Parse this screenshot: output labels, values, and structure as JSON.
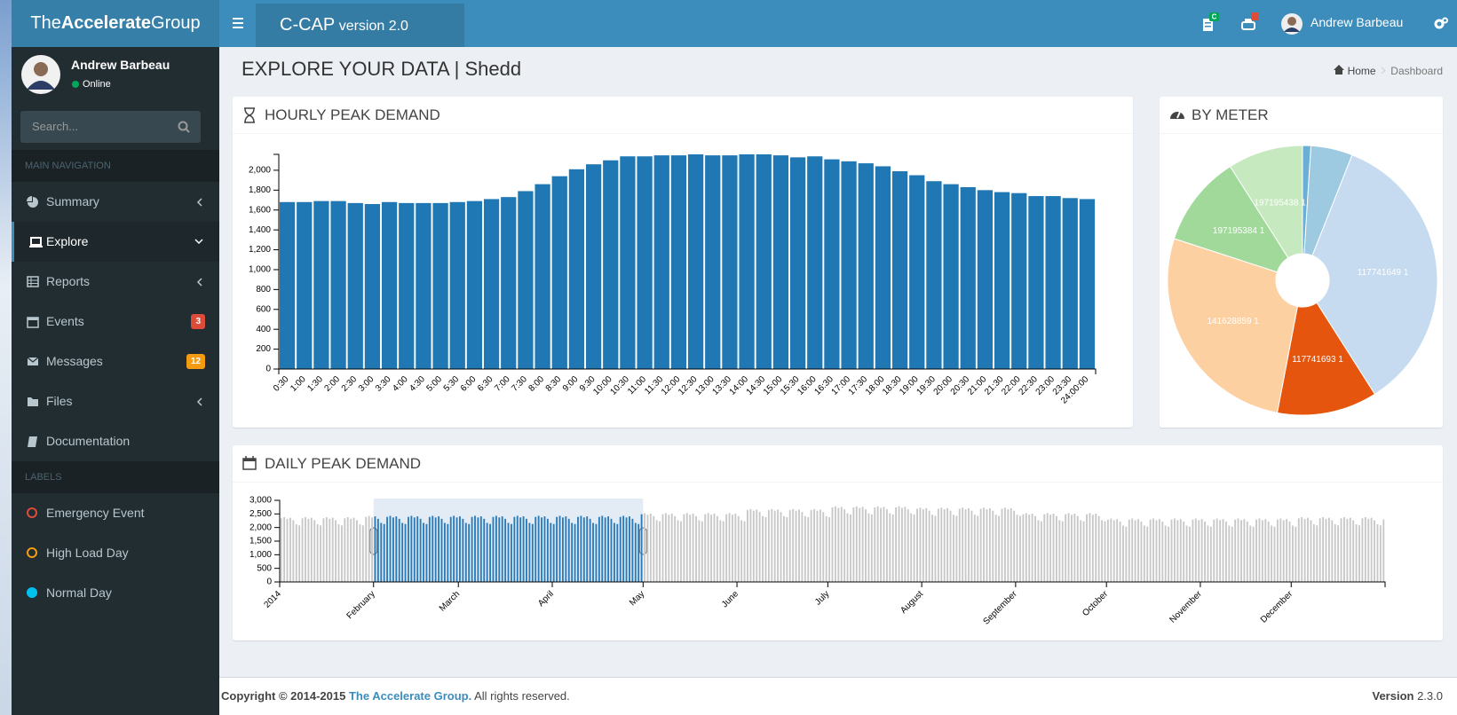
{
  "header": {
    "logo": [
      "The",
      "Accelerate",
      "Group"
    ],
    "app_name": "C-CAP",
    "app_version": "version 2.0",
    "notification_badge": "C",
    "user_name": "Andrew Barbeau"
  },
  "sidebar": {
    "user_name": "Andrew Barbeau",
    "status": "Online",
    "search_placeholder": "Search...",
    "main_nav_header": "MAIN NAVIGATION",
    "nav": [
      {
        "label": "Summary"
      },
      {
        "label": "Explore"
      },
      {
        "label": "Reports"
      },
      {
        "label": "Events",
        "badge": 3
      },
      {
        "label": "Messages",
        "badge": 12
      },
      {
        "label": "Files"
      },
      {
        "label": "Documentation"
      }
    ],
    "labels_header": "LABELS",
    "labels": [
      "Emergency Event",
      "High Load Day",
      "Normal Day"
    ]
  },
  "page": {
    "title": "EXPLORE YOUR DATA | Shedd",
    "breadcrumb": [
      "Home",
      "Dashboard"
    ]
  },
  "chart_data": [
    {
      "type": "bar",
      "title": "HOURLY PEAK DEMAND",
      "color": "#1f77b4",
      "categories": [
        "0:30",
        "1:00",
        "1:30",
        "2:00",
        "2:30",
        "3:00",
        "3:30",
        "4:00",
        "4:30",
        "5:00",
        "5:30",
        "6:00",
        "6:30",
        "7:00",
        "7:30",
        "8:00",
        "8:30",
        "9:00",
        "9:30",
        "10:00",
        "10:30",
        "11:00",
        "11:30",
        "12:00",
        "12:30",
        "13:00",
        "13:30",
        "14:00",
        "14:30",
        "15:00",
        "15:30",
        "16:00",
        "16:30",
        "17:00",
        "17:30",
        "18:00",
        "18:30",
        "19:00",
        "19:30",
        "20:00",
        "20:30",
        "21:00",
        "21:30",
        "22:00",
        "22:30",
        "23:00",
        "23:30",
        "24:00:00"
      ],
      "values": [
        1680,
        1680,
        1690,
        1690,
        1670,
        1660,
        1680,
        1670,
        1670,
        1670,
        1680,
        1690,
        1710,
        1730,
        1790,
        1860,
        1940,
        2010,
        2060,
        2100,
        2140,
        2140,
        2150,
        2150,
        2160,
        2150,
        2150,
        2160,
        2160,
        2150,
        2130,
        2140,
        2110,
        2090,
        2070,
        2040,
        1990,
        1950,
        1890,
        1860,
        1830,
        1800,
        1780,
        1770,
        1740,
        1740,
        1720,
        1710
      ],
      "ylim": [
        0,
        2160
      ],
      "yticks": [
        0,
        200,
        400,
        600,
        800,
        {
          "value": 1000,
          "label": "1,000"
        },
        {
          "value": 1200,
          "label": "1,200"
        },
        {
          "value": 1400,
          "label": "1,400"
        },
        {
          "value": 1600,
          "label": "1,600"
        },
        {
          "value": 1800,
          "label": "1,800"
        },
        {
          "value": 2000,
          "label": "2,000"
        }
      ],
      "grid": false
    },
    {
      "type": "pie",
      "title": "BY METER",
      "donut": true,
      "categories": [
        null,
        null,
        "117741649 1",
        "117741693 1",
        "141628859 1",
        "197195384 1",
        "197195438 1"
      ],
      "values": [
        1,
        5,
        35,
        12,
        27,
        11,
        9
      ],
      "colors": [
        "#6baed6",
        "#9ecae1",
        "#c6dbef",
        "#e6550d",
        "#fdd0a2",
        "#a1d99b",
        "#c7e9c0"
      ]
    },
    {
      "type": "bar",
      "title": "DAILY PEAK DEMAND",
      "color": "#2b7bb9",
      "unselected_color": "#c8c8c8",
      "brush": [
        31,
        120
      ],
      "values": [
        2340,
        2380,
        2320,
        2360,
        2270,
        2120,
        2080,
        2340,
        2380,
        2320,
        2360,
        2270,
        2120,
        2080,
        2340,
        2380,
        2320,
        2360,
        2270,
        2120,
        2080,
        2340,
        2380,
        2320,
        2360,
        2270,
        2120,
        2080,
        2390,
        2430,
        2370,
        2410,
        2320,
        2170,
        2130,
        2390,
        2430,
        2370,
        2410,
        2320,
        2170,
        2130,
        2390,
        2430,
        2370,
        2410,
        2320,
        2170,
        2130,
        2390,
        2430,
        2370,
        2410,
        2320,
        2170,
        2130,
        2390,
        2430,
        2370,
        2410,
        2320,
        2170,
        2130,
        2390,
        2430,
        2370,
        2410,
        2320,
        2170,
        2130,
        2390,
        2430,
        2370,
        2410,
        2320,
        2170,
        2130,
        2390,
        2430,
        2370,
        2410,
        2320,
        2170,
        2130,
        2390,
        2430,
        2370,
        2410,
        2320,
        2170,
        2130,
        2390,
        2430,
        2370,
        2410,
        2320,
        2170,
        2130,
        2390,
        2430,
        2370,
        2410,
        2320,
        2170,
        2130,
        2390,
        2430,
        2370,
        2410,
        2320,
        2170,
        2130,
        2390,
        2430,
        2370,
        2410,
        2320,
        2170,
        2130,
        2490,
        2530,
        2470,
        2510,
        2420,
        2270,
        2230,
        2490,
        2530,
        2470,
        2510,
        2420,
        2270,
        2230,
        2490,
        2530,
        2470,
        2510,
        2420,
        2270,
        2230,
        2490,
        2530,
        2470,
        2510,
        2420,
        2270,
        2230,
        2490,
        2530,
        2470,
        2510,
        2420,
        2270,
        2230,
        2640,
        2680,
        2620,
        2660,
        2570,
        2420,
        2380,
        2640,
        2680,
        2620,
        2660,
        2570,
        2420,
        2380,
        2640,
        2680,
        2620,
        2660,
        2570,
        2420,
        2380,
        2640,
        2680,
        2620,
        2660,
        2570,
        2420,
        2380,
        2740,
        2780,
        2720,
        2760,
        2670,
        2520,
        2480,
        2740,
        2780,
        2720,
        2760,
        2670,
        2520,
        2480,
        2740,
        2780,
        2720,
        2760,
        2670,
        2520,
        2480,
        2740,
        2780,
        2720,
        2760,
        2670,
        2520,
        2480,
        2690,
        2730,
        2670,
        2710,
        2620,
        2470,
        2430,
        2690,
        2730,
        2670,
        2710,
        2620,
        2470,
        2430,
        2690,
        2730,
        2670,
        2710,
        2620,
        2470,
        2430,
        2690,
        2730,
        2670,
        2710,
        2620,
        2470,
        2430,
        2690,
        2730,
        2670,
        2710,
        2620,
        2470,
        2430,
        2490,
        2530,
        2470,
        2510,
        2420,
        2270,
        2230,
        2490,
        2530,
        2470,
        2510,
        2420,
        2270,
        2230,
        2490,
        2530,
        2470,
        2510,
        2420,
        2270,
        2230,
        2490,
        2530,
        2470,
        2510,
        2420,
        2270,
        2230,
        2290,
        2330,
        2270,
        2310,
        2220,
        2070,
        2030,
        2290,
        2330,
        2270,
        2310,
        2220,
        2070,
        2030,
        2290,
        2330,
        2270,
        2310,
        2220,
        2070,
        2030,
        2290,
        2330,
        2270,
        2310,
        2220,
        2070,
        2030,
        2290,
        2330,
        2270,
        2310,
        2220,
        2070,
        2030,
        2290,
        2330,
        2270,
        2310,
        2220,
        2070,
        2030,
        2290,
        2330,
        2270,
        2310,
        2220,
        2070,
        2030,
        2290,
        2330,
        2270,
        2310,
        2220,
        2070,
        2030,
        2290,
        2330,
        2270,
        2310,
        2220,
        2070,
        2030,
        2340,
        2380,
        2320,
        2360,
        2270,
        2120,
        2080,
        2340,
        2380,
        2320,
        2360,
        2270,
        2120,
        2080,
        2340,
        2380,
        2320,
        2360,
        2270,
        2120,
        2080,
        2340,
        2380,
        2320,
        2360,
        2270,
        2120,
        2080,
        2300
      ],
      "xlim": [
        0,
        365
      ],
      "xticks": [
        {
          "value": 0,
          "label": "2014"
        },
        {
          "value": 31,
          "label": "February"
        },
        {
          "value": 59,
          "label": "March"
        },
        {
          "value": 90,
          "label": "April"
        },
        {
          "value": 120,
          "label": "May"
        },
        {
          "value": 151,
          "label": "June"
        },
        {
          "value": 181,
          "label": "July"
        },
        {
          "value": 212,
          "label": "August"
        },
        {
          "value": 243,
          "label": "September"
        },
        {
          "value": 273,
          "label": "October"
        },
        {
          "value": 304,
          "label": "November"
        },
        {
          "value": 334,
          "label": "December"
        }
      ],
      "ylim": [
        0,
        3000
      ],
      "yticks": [
        0,
        500,
        {
          "value": 1000,
          "label": "1,000"
        },
        {
          "value": 1500,
          "label": "1,500"
        },
        {
          "value": 2000,
          "label": "2,000"
        },
        {
          "value": 2500,
          "label": "2,500"
        },
        {
          "value": 3000,
          "label": "3,000"
        }
      ],
      "grid": false
    }
  ],
  "footer": {
    "copyright": "Copyright © 2014-2015",
    "company": "The Accelerate Group.",
    "rights": "All rights reserved.",
    "version_label": "Version",
    "version": "2.3.0"
  }
}
